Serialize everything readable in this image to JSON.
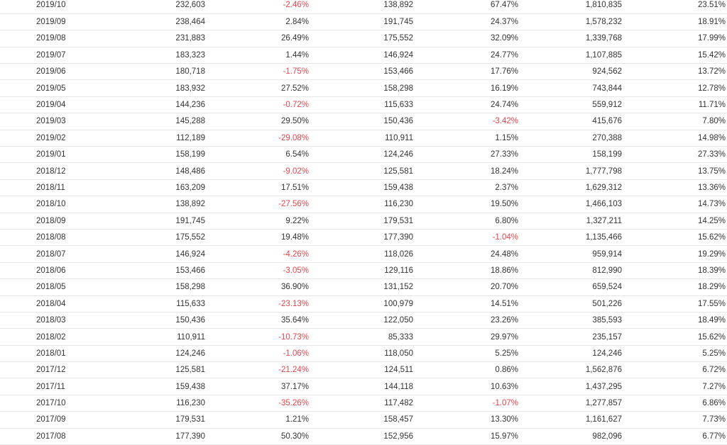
{
  "colors": {
    "negative": "#e8434a",
    "text": "#333333",
    "row_border": "#e6e6e6"
  },
  "rows": [
    [
      "2019/10",
      "232,603",
      "-2.46%",
      "138,892",
      "67.47%",
      "1,810,835",
      "23.51%"
    ],
    [
      "2019/09",
      "238,464",
      "2.84%",
      "191,745",
      "24.37%",
      "1,578,232",
      "18.91%"
    ],
    [
      "2019/08",
      "231,883",
      "26.49%",
      "175,552",
      "32.09%",
      "1,339,768",
      "17.99%"
    ],
    [
      "2019/07",
      "183,323",
      "1.44%",
      "146,924",
      "24.77%",
      "1,107,885",
      "15.42%"
    ],
    [
      "2019/06",
      "180,718",
      "-1.75%",
      "153,466",
      "17.76%",
      "924,562",
      "13.72%"
    ],
    [
      "2019/05",
      "183,932",
      "27.52%",
      "158,298",
      "16.19%",
      "743,844",
      "12.78%"
    ],
    [
      "2019/04",
      "144,236",
      "-0.72%",
      "115,633",
      "24.74%",
      "559,912",
      "11.71%"
    ],
    [
      "2019/03",
      "145,288",
      "29.50%",
      "150,436",
      "-3.42%",
      "415,676",
      "7.80%"
    ],
    [
      "2019/02",
      "112,189",
      "-29.08%",
      "110,911",
      "1.15%",
      "270,388",
      "14.98%"
    ],
    [
      "2019/01",
      "158,199",
      "6.54%",
      "124,246",
      "27.33%",
      "158,199",
      "27.33%"
    ],
    [
      "2018/12",
      "148,486",
      "-9.02%",
      "125,581",
      "18.24%",
      "1,777,798",
      "13.75%"
    ],
    [
      "2018/11",
      "163,209",
      "17.51%",
      "159,438",
      "2.37%",
      "1,629,312",
      "13.36%"
    ],
    [
      "2018/10",
      "138,892",
      "-27.56%",
      "116,230",
      "19.50%",
      "1,466,103",
      "14.73%"
    ],
    [
      "2018/09",
      "191,745",
      "9.22%",
      "179,531",
      "6.80%",
      "1,327,211",
      "14.25%"
    ],
    [
      "2018/08",
      "175,552",
      "19.48%",
      "177,390",
      "-1.04%",
      "1,135,466",
      "15.62%"
    ],
    [
      "2018/07",
      "146,924",
      "-4.26%",
      "118,026",
      "24.48%",
      "959,914",
      "19.29%"
    ],
    [
      "2018/06",
      "153,466",
      "-3.05%",
      "129,116",
      "18.86%",
      "812,990",
      "18.39%"
    ],
    [
      "2018/05",
      "158,298",
      "36.90%",
      "131,152",
      "20.70%",
      "659,524",
      "18.29%"
    ],
    [
      "2018/04",
      "115,633",
      "-23.13%",
      "100,979",
      "14.51%",
      "501,226",
      "17.55%"
    ],
    [
      "2018/03",
      "150,436",
      "35.64%",
      "122,050",
      "23.26%",
      "385,593",
      "18.49%"
    ],
    [
      "2018/02",
      "110,911",
      "-10.73%",
      "85,333",
      "29.97%",
      "235,157",
      "15.62%"
    ],
    [
      "2018/01",
      "124,246",
      "-1.06%",
      "118,050",
      "5.25%",
      "124,246",
      "5.25%"
    ],
    [
      "2017/12",
      "125,581",
      "-21.24%",
      "124,511",
      "0.86%",
      "1,562,876",
      "6.72%"
    ],
    [
      "2017/11",
      "159,438",
      "37.17%",
      "144,118",
      "10.63%",
      "1,437,295",
      "7.27%"
    ],
    [
      "2017/10",
      "116,230",
      "-35.26%",
      "117,482",
      "-1.07%",
      "1,277,857",
      "6.86%"
    ],
    [
      "2017/09",
      "179,531",
      "1.21%",
      "158,457",
      "13.30%",
      "1,161,627",
      "7.73%"
    ],
    [
      "2017/08",
      "177,390",
      "50.30%",
      "152,956",
      "15.97%",
      "982,096",
      "6.77%"
    ]
  ]
}
